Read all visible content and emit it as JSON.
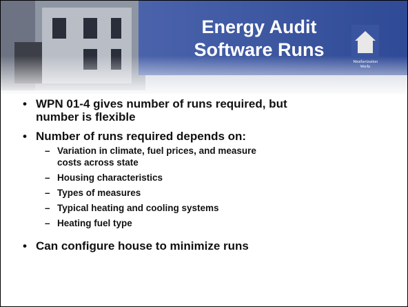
{
  "slide": {
    "title": [
      "Energy Audit",
      "Software Runs"
    ],
    "logo_text": [
      "Weatherization",
      "Works"
    ],
    "bullets": [
      {
        "lines": [
          "WPN 01-4 gives number of runs required, but",
          "number is flexible"
        ],
        "subitems": []
      },
      {
        "lines": [
          "Number of runs required depends on:"
        ],
        "subitems": [
          [
            "Variation in climate, fuel prices, and measure",
            "costs across state"
          ],
          [
            "Housing characteristics"
          ],
          [
            "Types of measures"
          ],
          [
            "Typical heating and cooling systems"
          ],
          [
            "Heating fuel type"
          ]
        ]
      },
      {
        "lines": [
          "Can configure house to minimize runs"
        ],
        "subitems": []
      }
    ]
  }
}
